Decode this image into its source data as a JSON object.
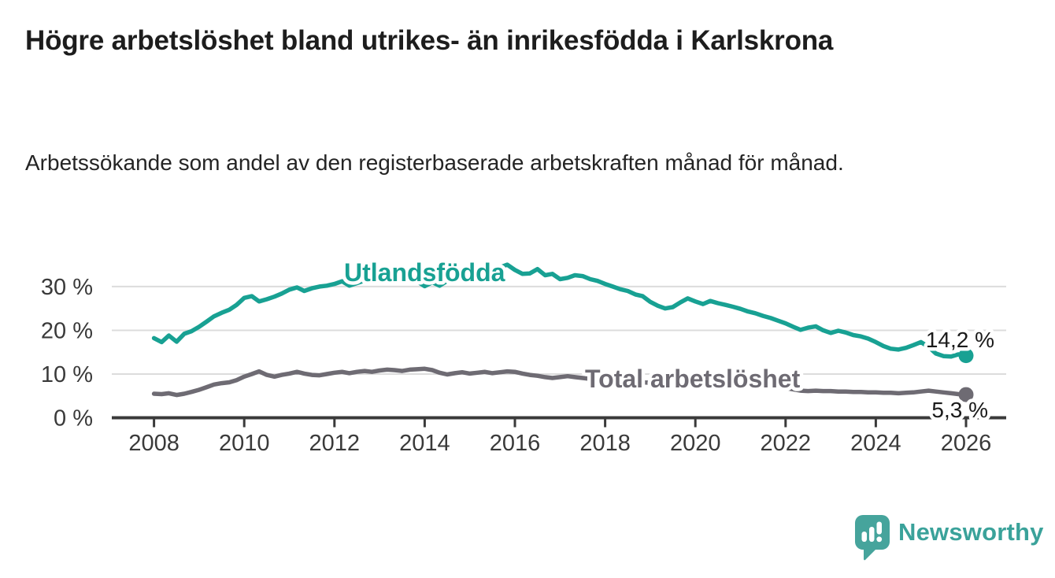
{
  "page": {
    "title": "Högre arbetslöshet bland utrikes- än inrikesfödda i Karlskrona",
    "subtitle": "Arbetssökande som andel av den registerbaserade arbetskraften månad för månad."
  },
  "branding": {
    "logo_text": "Newsworthy",
    "logo_icon": "newsworthy-speech-bubble-bar-chart-icon",
    "logo_color": "#46a49c",
    "logo_text_color": "#3aa29a"
  },
  "chart_data": {
    "type": "line",
    "title": "Högre arbetslöshet bland utrikes- än inrikesfödda i Karlskrona",
    "subtitle": "Arbetssökande som andel av den registerbaserade arbetskraften månad för månad.",
    "grid": true,
    "x_axis": {
      "ticks": [
        2008,
        2010,
        2012,
        2014,
        2016,
        2018,
        2020,
        2022,
        2024,
        2026
      ],
      "tick_labels": [
        "2008",
        "2010",
        "2012",
        "2014",
        "2016",
        "2018",
        "2020",
        "2022",
        "2024",
        "2026"
      ],
      "range": [
        2007.1,
        2026.9
      ]
    },
    "y_axis": {
      "unit": "%",
      "ticks": [
        0,
        10,
        20,
        30
      ],
      "tick_labels": [
        "0 %",
        "10 %",
        "20 %",
        "30 %"
      ],
      "range": [
        0,
        36
      ]
    },
    "series": [
      {
        "name": "Utlandsfödda",
        "color": "#18a193",
        "end_label": "14,2 %",
        "end_value": 14.2,
        "points": [
          [
            2008,
            18.2
          ],
          [
            2008.17,
            17.3
          ],
          [
            2008.33,
            18.8
          ],
          [
            2008.5,
            17.4
          ],
          [
            2008.67,
            19.2
          ],
          [
            2008.83,
            19.8
          ],
          [
            2009,
            20.8
          ],
          [
            2009.17,
            22
          ],
          [
            2009.33,
            23.2
          ],
          [
            2009.5,
            24
          ],
          [
            2009.67,
            24.7
          ],
          [
            2009.83,
            25.8
          ],
          [
            2010,
            27.4
          ],
          [
            2010.17,
            27.8
          ],
          [
            2010.33,
            26.6
          ],
          [
            2010.5,
            27.1
          ],
          [
            2010.67,
            27.7
          ],
          [
            2010.83,
            28.4
          ],
          [
            2011,
            29.3
          ],
          [
            2011.17,
            29.8
          ],
          [
            2011.33,
            29
          ],
          [
            2011.5,
            29.6
          ],
          [
            2011.67,
            30
          ],
          [
            2011.83,
            30.2
          ],
          [
            2012,
            30.6
          ],
          [
            2012.17,
            31.2
          ],
          [
            2012.33,
            30.2
          ],
          [
            2012.5,
            30.8
          ],
          [
            2012.67,
            31.4
          ],
          [
            2012.83,
            31.9
          ],
          [
            2013,
            31.6
          ],
          [
            2013.17,
            32.1
          ],
          [
            2013.33,
            31.7
          ],
          [
            2013.5,
            32.2
          ],
          [
            2013.67,
            31.8
          ],
          [
            2013.83,
            31.2
          ],
          [
            2014,
            30.1
          ],
          [
            2014.17,
            31
          ],
          [
            2014.33,
            30.2
          ],
          [
            2014.5,
            31.3
          ],
          [
            2014.67,
            32
          ],
          [
            2014.83,
            31.5
          ],
          [
            2015,
            31.1
          ],
          [
            2015.17,
            32
          ],
          [
            2015.33,
            33.3
          ],
          [
            2015.5,
            34.2
          ],
          [
            2015.67,
            34.4
          ],
          [
            2015.83,
            35
          ],
          [
            2016,
            33.8
          ],
          [
            2016.17,
            32.9
          ],
          [
            2016.33,
            33
          ],
          [
            2016.5,
            34
          ],
          [
            2016.67,
            32.6
          ],
          [
            2016.83,
            32.9
          ],
          [
            2017,
            31.7
          ],
          [
            2017.17,
            32
          ],
          [
            2017.33,
            32.6
          ],
          [
            2017.5,
            32.4
          ],
          [
            2017.67,
            31.7
          ],
          [
            2017.83,
            31.3
          ],
          [
            2018,
            30.6
          ],
          [
            2018.17,
            30
          ],
          [
            2018.33,
            29.4
          ],
          [
            2018.5,
            29
          ],
          [
            2018.67,
            28.2
          ],
          [
            2018.83,
            27.8
          ],
          [
            2019,
            26.5
          ],
          [
            2019.17,
            25.6
          ],
          [
            2019.33,
            25
          ],
          [
            2019.5,
            25.3
          ],
          [
            2019.67,
            26.4
          ],
          [
            2019.83,
            27.3
          ],
          [
            2020,
            26.6
          ],
          [
            2020.17,
            26
          ],
          [
            2020.33,
            26.7
          ],
          [
            2020.5,
            26.2
          ],
          [
            2020.67,
            25.8
          ],
          [
            2020.83,
            25.4
          ],
          [
            2021,
            24.9
          ],
          [
            2021.17,
            24.3
          ],
          [
            2021.33,
            23.9
          ],
          [
            2021.5,
            23.3
          ],
          [
            2021.67,
            22.8
          ],
          [
            2021.83,
            22.2
          ],
          [
            2022,
            21.6
          ],
          [
            2022.17,
            20.8
          ],
          [
            2022.33,
            20.1
          ],
          [
            2022.5,
            20.6
          ],
          [
            2022.67,
            20.9
          ],
          [
            2022.83,
            20
          ],
          [
            2023,
            19.4
          ],
          [
            2023.17,
            19.9
          ],
          [
            2023.33,
            19.5
          ],
          [
            2023.5,
            18.9
          ],
          [
            2023.67,
            18.6
          ],
          [
            2023.83,
            18.1
          ],
          [
            2024,
            17.3
          ],
          [
            2024.17,
            16.4
          ],
          [
            2024.33,
            15.8
          ],
          [
            2024.5,
            15.6
          ],
          [
            2024.67,
            16
          ],
          [
            2024.83,
            16.6
          ],
          [
            2025,
            17.3
          ],
          [
            2025.17,
            16.2
          ],
          [
            2025.33,
            14.7
          ],
          [
            2025.5,
            14.1
          ],
          [
            2025.67,
            14
          ],
          [
            2025.83,
            14.5
          ],
          [
            2026,
            14.2
          ]
        ]
      },
      {
        "name": "Total arbetslöshet",
        "color": "#6e6b73",
        "end_label": "5,3 %",
        "end_value": 5.3,
        "points": [
          [
            2008,
            5.5
          ],
          [
            2008.17,
            5.4
          ],
          [
            2008.33,
            5.6
          ],
          [
            2008.5,
            5.2
          ],
          [
            2008.67,
            5.5
          ],
          [
            2008.83,
            5.9
          ],
          [
            2009,
            6.4
          ],
          [
            2009.17,
            7
          ],
          [
            2009.33,
            7.6
          ],
          [
            2009.5,
            7.9
          ],
          [
            2009.67,
            8.1
          ],
          [
            2009.83,
            8.6
          ],
          [
            2010,
            9.4
          ],
          [
            2010.17,
            10
          ],
          [
            2010.33,
            10.6
          ],
          [
            2010.5,
            9.8
          ],
          [
            2010.67,
            9.4
          ],
          [
            2010.83,
            9.8
          ],
          [
            2011,
            10.1
          ],
          [
            2011.17,
            10.5
          ],
          [
            2011.33,
            10.1
          ],
          [
            2011.5,
            9.8
          ],
          [
            2011.67,
            9.7
          ],
          [
            2011.83,
            10
          ],
          [
            2012,
            10.3
          ],
          [
            2012.17,
            10.5
          ],
          [
            2012.33,
            10.2
          ],
          [
            2012.5,
            10.5
          ],
          [
            2012.67,
            10.7
          ],
          [
            2012.83,
            10.5
          ],
          [
            2013,
            10.8
          ],
          [
            2013.17,
            11
          ],
          [
            2013.33,
            10.9
          ],
          [
            2013.5,
            10.7
          ],
          [
            2013.67,
            11
          ],
          [
            2013.83,
            11.1
          ],
          [
            2014,
            11.2
          ],
          [
            2014.17,
            10.9
          ],
          [
            2014.33,
            10.3
          ],
          [
            2014.5,
            9.9
          ],
          [
            2014.67,
            10.2
          ],
          [
            2014.83,
            10.4
          ],
          [
            2015,
            10.1
          ],
          [
            2015.17,
            10.3
          ],
          [
            2015.33,
            10.5
          ],
          [
            2015.5,
            10.2
          ],
          [
            2015.67,
            10.4
          ],
          [
            2015.83,
            10.6
          ],
          [
            2016,
            10.5
          ],
          [
            2016.17,
            10.1
          ],
          [
            2016.33,
            9.8
          ],
          [
            2016.5,
            9.6
          ],
          [
            2016.67,
            9.3
          ],
          [
            2016.83,
            9.1
          ],
          [
            2017,
            9.3
          ],
          [
            2017.17,
            9.5
          ],
          [
            2017.33,
            9.3
          ],
          [
            2017.5,
            9.1
          ],
          [
            2017.67,
            8.9
          ],
          [
            2017.83,
            8.8
          ],
          [
            2018,
            8.7
          ],
          [
            2018.17,
            8.6
          ],
          [
            2018.33,
            8.4
          ],
          [
            2018.5,
            8.3
          ],
          [
            2018.67,
            8.2
          ],
          [
            2018.83,
            8.1
          ],
          [
            2019,
            8
          ],
          [
            2019.17,
            7.9
          ],
          [
            2019.33,
            7.8
          ],
          [
            2019.5,
            7.8
          ],
          [
            2019.67,
            7.9
          ],
          [
            2019.83,
            8
          ],
          [
            2020,
            8.2
          ],
          [
            2020.17,
            8.6
          ],
          [
            2020.33,
            8.9
          ],
          [
            2020.5,
            8.8
          ],
          [
            2020.67,
            8.6
          ],
          [
            2020.83,
            8.4
          ],
          [
            2021,
            8.3
          ],
          [
            2021.17,
            8
          ],
          [
            2021.33,
            7.7
          ],
          [
            2021.5,
            7.4
          ],
          [
            2021.67,
            7.2
          ],
          [
            2021.83,
            7
          ],
          [
            2022,
            6.8
          ],
          [
            2022.17,
            6.5
          ],
          [
            2022.33,
            6.2
          ],
          [
            2022.5,
            6.1
          ],
          [
            2022.67,
            6.2
          ],
          [
            2022.83,
            6.1
          ],
          [
            2023,
            6.1
          ],
          [
            2023.17,
            6
          ],
          [
            2023.33,
            6
          ],
          [
            2023.5,
            5.9
          ],
          [
            2023.67,
            5.9
          ],
          [
            2023.83,
            5.8
          ],
          [
            2024,
            5.8
          ],
          [
            2024.17,
            5.7
          ],
          [
            2024.33,
            5.7
          ],
          [
            2024.5,
            5.6
          ],
          [
            2024.67,
            5.7
          ],
          [
            2024.83,
            5.8
          ],
          [
            2025,
            6
          ],
          [
            2025.17,
            6.2
          ],
          [
            2025.33,
            6
          ],
          [
            2025.5,
            5.8
          ],
          [
            2025.67,
            5.6
          ],
          [
            2025.83,
            5.4
          ],
          [
            2026,
            5.3
          ]
        ]
      }
    ]
  }
}
